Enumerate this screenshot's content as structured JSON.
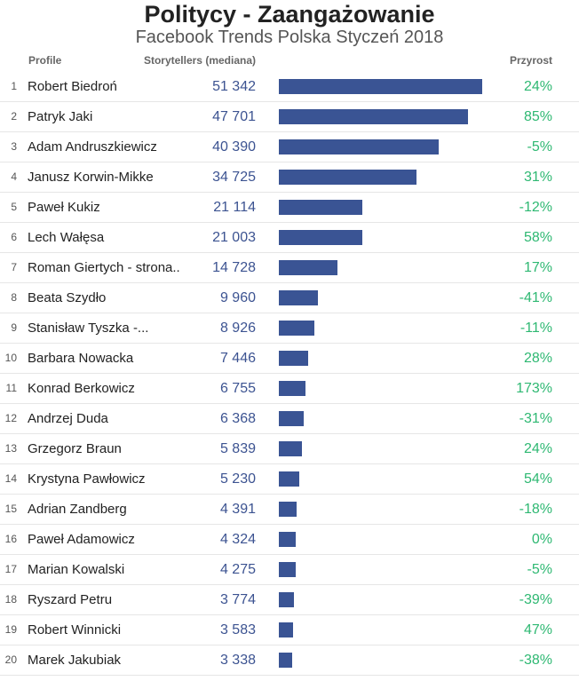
{
  "colors": {
    "bar": "#3a5494",
    "value": "#3c5391",
    "growth": "#2eb872"
  },
  "chart_data": {
    "type": "bar",
    "orientation": "horizontal",
    "title": "Politycy - Zaangażowanie",
    "subtitle": "Facebook Trends Polska Styczeń 2018",
    "columns": {
      "profile": "Profile",
      "storytellers": "Storytellers (mediana)",
      "growth": "Przyrost"
    },
    "xlim": [
      0,
      51342
    ],
    "rows": [
      {
        "rank": "1",
        "name": "Robert Biedroń",
        "value": 51342,
        "label": "51 342",
        "growth": "24%"
      },
      {
        "rank": "2",
        "name": "Patryk Jaki",
        "value": 47701,
        "label": "47 701",
        "growth": "85%"
      },
      {
        "rank": "3",
        "name": "Adam Andruszkiewicz",
        "value": 40390,
        "label": "40 390",
        "growth": "-5%"
      },
      {
        "rank": "4",
        "name": "Janusz Korwin-Mikke",
        "value": 34725,
        "label": "34 725",
        "growth": "31%"
      },
      {
        "rank": "5",
        "name": "Paweł Kukiz",
        "value": 21114,
        "label": "21 114",
        "growth": "-12%"
      },
      {
        "rank": "6",
        "name": "Lech Wałęsa",
        "value": 21003,
        "label": "21 003",
        "growth": "58%"
      },
      {
        "rank": "7",
        "name": "Roman Giertych - strona...",
        "value": 14728,
        "label": "14 728",
        "growth": "17%"
      },
      {
        "rank": "8",
        "name": "Beata Szydło",
        "value": 9960,
        "label": "9 960",
        "growth": "-41%"
      },
      {
        "rank": "9",
        "name": "Stanisław Tyszka -...",
        "value": 8926,
        "label": "8 926",
        "growth": "-11%"
      },
      {
        "rank": "10",
        "name": "Barbara Nowacka",
        "value": 7446,
        "label": "7 446",
        "growth": "28%"
      },
      {
        "rank": "11",
        "name": "Konrad Berkowicz",
        "value": 6755,
        "label": "6 755",
        "growth": "173%"
      },
      {
        "rank": "12",
        "name": "Andrzej Duda",
        "value": 6368,
        "label": "6 368",
        "growth": "-31%"
      },
      {
        "rank": "13",
        "name": "Grzegorz Braun",
        "value": 5839,
        "label": "5 839",
        "growth": "24%"
      },
      {
        "rank": "14",
        "name": "Krystyna Pawłowicz",
        "value": 5230,
        "label": "5 230",
        "growth": "54%"
      },
      {
        "rank": "15",
        "name": "Adrian Zandberg",
        "value": 4391,
        "label": "4 391",
        "growth": "-18%"
      },
      {
        "rank": "16",
        "name": "Paweł Adamowicz",
        "value": 4324,
        "label": "4 324",
        "growth": "0%"
      },
      {
        "rank": "17",
        "name": "Marian Kowalski",
        "value": 4275,
        "label": "4 275",
        "growth": "-5%"
      },
      {
        "rank": "18",
        "name": "Ryszard Petru",
        "value": 3774,
        "label": "3 774",
        "growth": "-39%"
      },
      {
        "rank": "19",
        "name": "Robert Winnicki",
        "value": 3583,
        "label": "3 583",
        "growth": "47%"
      },
      {
        "rank": "20",
        "name": "Marek Jakubiak",
        "value": 3338,
        "label": "3 338",
        "growth": "-38%"
      }
    ]
  }
}
